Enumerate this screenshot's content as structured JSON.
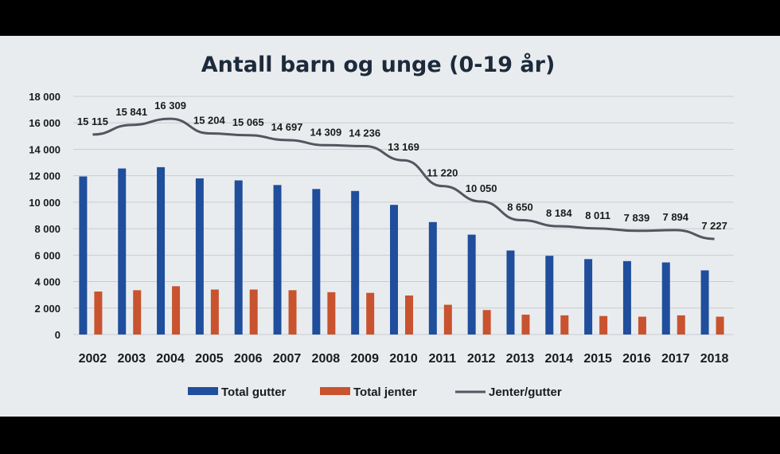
{
  "chart_data": {
    "type": "bar",
    "title": "Antall barn og unge (0-19 år)",
    "categories": [
      "2002",
      "2003",
      "2004",
      "2005",
      "2006",
      "2007",
      "2008",
      "2009",
      "2010",
      "2011",
      "2012",
      "2013",
      "2014",
      "2015",
      "2016",
      "2017",
      "2018"
    ],
    "ylim": [
      0,
      18000
    ],
    "yticks": [
      0,
      2000,
      4000,
      6000,
      8000,
      10000,
      12000,
      14000,
      16000,
      18000
    ],
    "ytick_labels": [
      "0",
      "2 000",
      "4 000",
      "6 000",
      "8 000",
      "10 000",
      "12 000",
      "14 000",
      "16 000",
      "18 000"
    ],
    "grid": true,
    "legend_position": "bottom",
    "series": [
      {
        "name": "Total gutter",
        "kind": "bar",
        "color": "#1f4e9c",
        "values": [
          11950,
          12550,
          12650,
          11800,
          11650,
          11300,
          11000,
          10850,
          9800,
          8500,
          7550,
          6350,
          5950,
          5700,
          5550,
          5450,
          4850
        ]
      },
      {
        "name": "Total jenter",
        "kind": "bar",
        "color": "#c8532e",
        "values": [
          3250,
          3350,
          3650,
          3400,
          3400,
          3350,
          3200,
          3150,
          2950,
          2250,
          1850,
          1500,
          1450,
          1400,
          1350,
          1450,
          1350
        ]
      },
      {
        "name": "Jenter/gutter",
        "kind": "line",
        "color": "#55555f",
        "values": [
          15115,
          15841,
          16309,
          15204,
          15065,
          14697,
          14309,
          14236,
          13169,
          11220,
          10050,
          8650,
          8184,
          8011,
          7839,
          7894,
          7227
        ],
        "labels": [
          "15 115",
          "15 841",
          "16 309",
          "15 204",
          "15 065",
          "14 697",
          "14 309",
          "14 236",
          "13 169",
          "11 220",
          "10 050",
          "8 650",
          "8 184",
          "8 011",
          "7 839",
          "7 894",
          "7 227"
        ]
      }
    ]
  }
}
